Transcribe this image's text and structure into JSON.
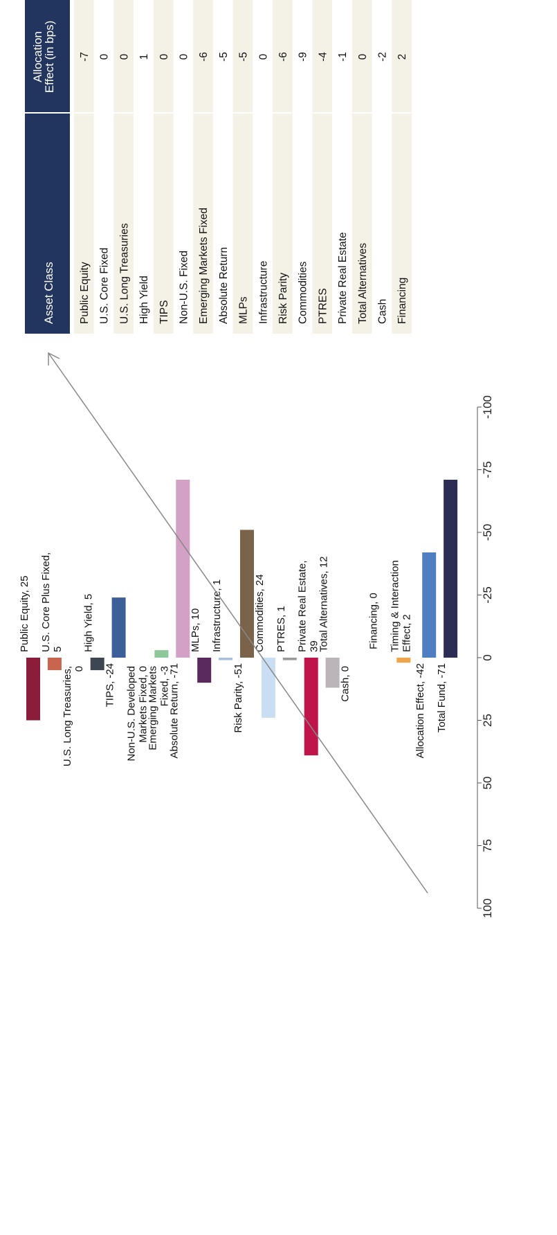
{
  "chart_data": [
    {
      "type": "bar",
      "orientation": "horizontal",
      "xlim": [
        -100,
        100
      ],
      "xticks": [
        "-100",
        "-75",
        "-50",
        "-25",
        "0",
        "25",
        "50",
        "75",
        "100"
      ],
      "bars": [
        {
          "name": "Public Equity",
          "value": 25,
          "label": "Public Equity, 25",
          "color": "#8c1d3a"
        },
        {
          "name": "U.S. Core Plus Fixed",
          "value": 5,
          "label": "U.S. Core Plus Fixed, 5",
          "color": "#c8654f"
        },
        {
          "name": "U.S. Long Treasuries",
          "value": 0,
          "label": "U.S. Long Treasuries, 0",
          "color": "#aaaaaa"
        },
        {
          "name": "High Yield",
          "value": 5,
          "label": "High Yield, 5",
          "color": "#3d4652"
        },
        {
          "name": "TIPS",
          "value": -24,
          "label": "TIPS, -24",
          "color": "#3d5f99"
        },
        {
          "name": "Non-U.S. Developed Markets Fixed",
          "value": 0,
          "label": "Non-U.S. Developed Markets Fixed, 0",
          "color": "#aaaaaa"
        },
        {
          "name": "Emerging Markets Fixed",
          "value": -3,
          "label": "Emerging Markets Fixed, -3",
          "color": "#8ec89a"
        },
        {
          "name": "Absolute Return",
          "value": -71,
          "label": "Absolute Return, -71",
          "color": "#d3a0c6"
        },
        {
          "name": "MLPs",
          "value": 10,
          "label": "MLPs, 10",
          "color": "#5a2a5e"
        },
        {
          "name": "Infrastructure",
          "value": 1,
          "label": "Infrastructure, 1",
          "color": "#a8c0d8"
        },
        {
          "name": "Risk Parity",
          "value": -51,
          "label": "Risk Parity, -51",
          "color": "#7b624b"
        },
        {
          "name": "Commodities",
          "value": 24,
          "label": "Commodities, 24",
          "color": "#c9def3"
        },
        {
          "name": "PTRES",
          "value": 1,
          "label": "PTRES, 1",
          "color": "#9a9a9a"
        },
        {
          "name": "Private Real Estate",
          "value": 39,
          "label": "Private Real Estate, 39",
          "color": "#c0154a"
        },
        {
          "name": "Total Alternatives",
          "value": 12,
          "label": "Total Alternatives, 12",
          "color": "#bbb4b8"
        },
        {
          "name": "Cash",
          "value": 0,
          "label": "Cash, 0",
          "color": "#aaaaaa"
        },
        {
          "name": "Financing",
          "value": 0,
          "label": "Financing, 0",
          "color": "#aaaaaa"
        },
        {
          "name": "Timing & Interaction Effect",
          "value": 2,
          "label": "Timing & Interaction Effect, 2",
          "color": "#f0a54a"
        },
        {
          "name": "Allocation Effect",
          "value": -42,
          "label": "Allocation Effect, -42",
          "color": "#4f7fc2"
        },
        {
          "name": "Total Fund",
          "value": -71,
          "label": "Total Fund, -71",
          "color": "#2c2d55"
        }
      ]
    },
    {
      "type": "table",
      "columns": [
        "Asset Class",
        "Allocation Effect (in bps)"
      ],
      "header_color": "#22355f",
      "rows": [
        [
          "Public Equity",
          "-7"
        ],
        [
          "U.S. Core Fixed",
          "0"
        ],
        [
          "U.S. Long Treasuries",
          "0"
        ],
        [
          "High Yield",
          "1"
        ],
        [
          "TIPS",
          "0"
        ],
        [
          "Non-U.S. Fixed",
          "0"
        ],
        [
          "Emerging Markets Fixed",
          "-6"
        ],
        [
          "Absolute Return",
          "-5"
        ],
        [
          "MLPs",
          "-5"
        ],
        [
          "Infrastructure",
          "0"
        ],
        [
          "Risk Parity",
          "-6"
        ],
        [
          "Commodities",
          "-9"
        ],
        [
          "PTRES",
          "-4"
        ],
        [
          "Private Real Estate",
          "-1"
        ],
        [
          "Total Alternatives",
          "0"
        ],
        [
          "Cash",
          "-2"
        ],
        [
          "Financing",
          "2"
        ]
      ]
    }
  ]
}
